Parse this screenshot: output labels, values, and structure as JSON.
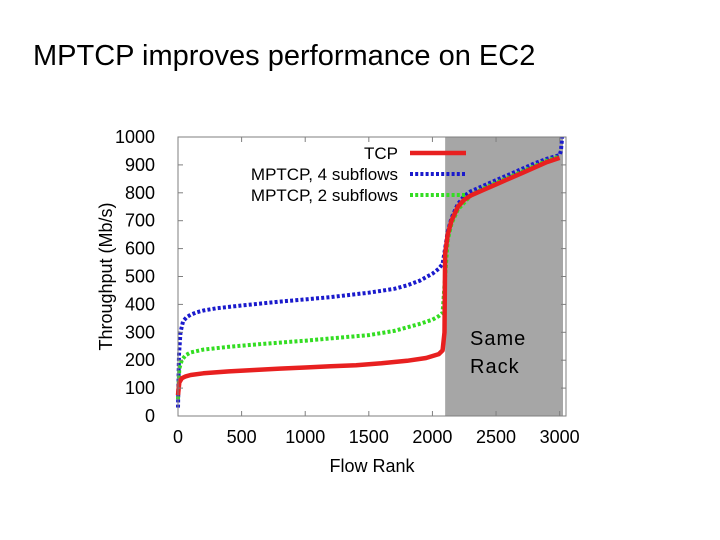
{
  "slide": {
    "title": "MPTCP improves performance on EC2"
  },
  "chart_data": {
    "type": "line",
    "xlabel": "Flow Rank",
    "ylabel": "Throughput (Mb/s)",
    "xlim": [
      0,
      3050
    ],
    "ylim": [
      0,
      1000
    ],
    "xticks": [
      0,
      500,
      1000,
      1500,
      2000,
      2500,
      3000
    ],
    "yticks": [
      0,
      100,
      200,
      300,
      400,
      500,
      600,
      700,
      800,
      900,
      1000
    ],
    "grid": false,
    "legend_position": "top-right",
    "shaded_region": {
      "x_start": 2100,
      "x_end": 3000,
      "label_lines": [
        "Same",
        "Rack"
      ],
      "color": "#a6a6a6"
    },
    "series": [
      {
        "name": "TCP",
        "color": "#e82020",
        "style": "solid",
        "x": [
          0,
          10,
          30,
          60,
          100,
          200,
          400,
          600,
          800,
          1000,
          1200,
          1400,
          1600,
          1800,
          1950,
          2050,
          2080,
          2095,
          2100,
          2120,
          2150,
          2200,
          2250,
          2300,
          2400,
          2500,
          2600,
          2700,
          2800,
          2900,
          3000
        ],
        "y": [
          75,
          120,
          135,
          142,
          147,
          153,
          160,
          165,
          170,
          174,
          178,
          182,
          189,
          198,
          208,
          222,
          235,
          300,
          580,
          650,
          700,
          750,
          775,
          790,
          810,
          830,
          850,
          870,
          890,
          910,
          925
        ]
      },
      {
        "name": "MPTCP, 4 subflows",
        "color": "#1a1acc",
        "style": "dotted",
        "x": [
          0,
          8,
          20,
          40,
          70,
          100,
          150,
          200,
          300,
          500,
          800,
          1000,
          1200,
          1500,
          1700,
          1800,
          1900,
          2000,
          2050,
          2080,
          2100,
          2120,
          2150,
          2200,
          2250,
          2300,
          2400,
          2500,
          2600,
          2700,
          2800,
          2900,
          3000,
          3010,
          3020
        ],
        "y": [
          30,
          220,
          300,
          340,
          355,
          363,
          372,
          378,
          386,
          396,
          410,
          418,
          426,
          442,
          456,
          468,
          485,
          510,
          528,
          545,
          600,
          660,
          710,
          760,
          788,
          805,
          825,
          845,
          865,
          885,
          905,
          922,
          935,
          950,
          1000
        ]
      },
      {
        "name": "MPTCP, 2 subflows",
        "color": "#33dd22",
        "style": "dotted",
        "x": [
          0,
          10,
          30,
          60,
          100,
          200,
          400,
          600,
          800,
          1000,
          1200,
          1500,
          1700,
          1900,
          2000,
          2050,
          2080,
          2100,
          2120,
          2150,
          2200,
          2300,
          2400,
          2500,
          2600,
          2700,
          2800,
          2900,
          3000
        ],
        "y": [
          60,
          170,
          200,
          218,
          228,
          238,
          248,
          256,
          263,
          270,
          278,
          290,
          305,
          330,
          345,
          358,
          370,
          500,
          630,
          690,
          740,
          790,
          815,
          835,
          855,
          875,
          895,
          915,
          930
        ]
      }
    ]
  }
}
